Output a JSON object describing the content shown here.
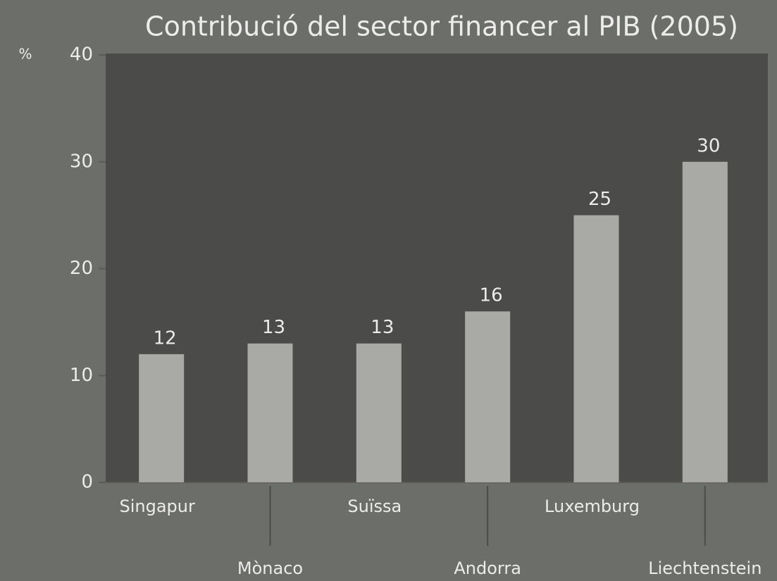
{
  "chart_data": {
    "type": "bar",
    "title": "Contribució del sector financer al PIB (2005)",
    "y_label": "%",
    "categories": [
      "Singapur",
      "Mònaco",
      "Suïssa",
      "Andorra",
      "Luxemburg",
      "Liechtenstein"
    ],
    "values": [
      12,
      13,
      13,
      16,
      25,
      30
    ],
    "color": "#a9aaa6",
    "ylim": [
      0,
      40
    ],
    "yticks": [
      0,
      10,
      20,
      30,
      40
    ],
    "grid": false
  }
}
